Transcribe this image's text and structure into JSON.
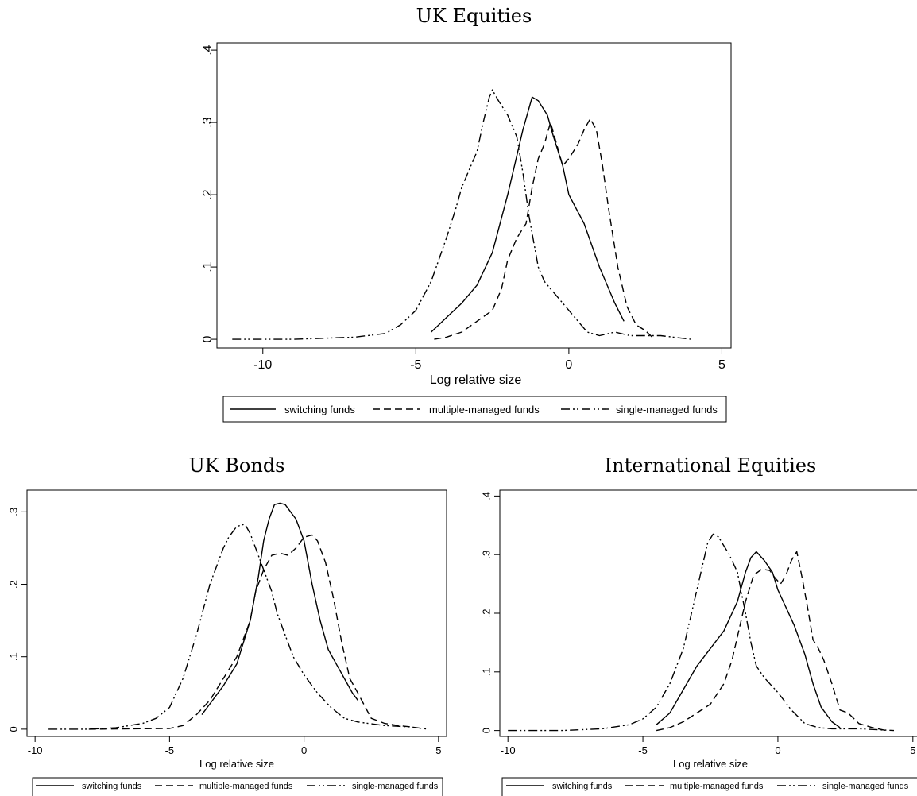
{
  "chart_data": [
    {
      "type": "line",
      "title": "UK Equities",
      "xlabel": "Log relative size",
      "ylabel": "",
      "xlim": [
        -11.5,
        5.3
      ],
      "ylim": [
        -0.012,
        0.41
      ],
      "xticks": [
        -10,
        -5,
        0,
        5
      ],
      "xtick_labels": [
        "-10",
        "-5",
        "0",
        "5"
      ],
      "yticks": [
        0,
        0.1,
        0.2,
        0.3,
        0.4
      ],
      "ytick_labels": [
        "0",
        ".1",
        ".2",
        ".3",
        ".4"
      ],
      "grid": false,
      "legend_position": "bottom",
      "series": [
        {
          "name": "switching funds",
          "style": "solid",
          "x": [
            -4.5,
            -4.0,
            -3.5,
            -3.0,
            -2.5,
            -2.0,
            -1.5,
            -1.2,
            -1.0,
            -0.7,
            -0.5,
            -0.2,
            0.0,
            0.5,
            1.0,
            1.5,
            1.8
          ],
          "y": [
            0.01,
            0.03,
            0.05,
            0.075,
            0.12,
            0.2,
            0.29,
            0.335,
            0.33,
            0.31,
            0.28,
            0.24,
            0.2,
            0.16,
            0.1,
            0.05,
            0.025
          ]
        },
        {
          "name": "multiple-managed funds",
          "style": "dashed",
          "x": [
            -4.4,
            -4.0,
            -3.5,
            -3.0,
            -2.5,
            -2.2,
            -2.0,
            -1.7,
            -1.4,
            -1.2,
            -1.0,
            -0.8,
            -0.6,
            -0.4,
            -0.2,
            0.0,
            0.3,
            0.5,
            0.7,
            0.9,
            1.1,
            1.3,
            1.6,
            1.9,
            2.2,
            2.5,
            2.8
          ],
          "y": [
            0.0,
            0.003,
            0.01,
            0.025,
            0.04,
            0.07,
            0.11,
            0.14,
            0.16,
            0.21,
            0.25,
            0.27,
            0.3,
            0.27,
            0.24,
            0.25,
            0.27,
            0.29,
            0.305,
            0.29,
            0.24,
            0.18,
            0.1,
            0.045,
            0.02,
            0.012,
            0.0
          ]
        },
        {
          "name": "single-managed funds",
          "style": "dashdot",
          "x": [
            -11.0,
            -9.0,
            -7.0,
            -6.0,
            -5.5,
            -5.0,
            -4.5,
            -4.0,
            -3.7,
            -3.5,
            -3.2,
            -3.0,
            -2.8,
            -2.6,
            -2.5,
            -2.3,
            -2.0,
            -1.7,
            -1.5,
            -1.3,
            -1.0,
            -0.8,
            -0.5,
            -0.2,
            0.0,
            0.3,
            0.6,
            1.0,
            1.5,
            2.0,
            3.0,
            4.0
          ],
          "y": [
            0.0,
            0.0,
            0.003,
            0.008,
            0.02,
            0.04,
            0.08,
            0.14,
            0.18,
            0.21,
            0.24,
            0.26,
            0.3,
            0.335,
            0.345,
            0.33,
            0.31,
            0.28,
            0.23,
            0.17,
            0.1,
            0.08,
            0.065,
            0.05,
            0.04,
            0.025,
            0.01,
            0.005,
            0.01,
            0.005,
            0.005,
            0.0
          ]
        }
      ],
      "legend": [
        "switching funds",
        "multiple-managed funds",
        "single-managed funds"
      ]
    },
    {
      "type": "line",
      "title": "UK Bonds",
      "xlabel": "Log relative size",
      "ylabel": "",
      "xlim": [
        -10.3,
        5.3
      ],
      "ylim": [
        -0.01,
        0.33
      ],
      "xticks": [
        -10,
        -5,
        0,
        5
      ],
      "xtick_labels": [
        "-10",
        "-5",
        "0",
        "5"
      ],
      "yticks": [
        0,
        0.1,
        0.2,
        0.3
      ],
      "ytick_labels": [
        "0",
        ".1",
        ".2",
        ".3"
      ],
      "grid": false,
      "legend_position": "bottom",
      "series": [
        {
          "name": "switching funds",
          "style": "solid",
          "x": [
            -3.8,
            -3.5,
            -3.0,
            -2.5,
            -2.0,
            -1.7,
            -1.5,
            -1.3,
            -1.1,
            -0.9,
            -0.7,
            -0.5,
            -0.3,
            0.0,
            0.3,
            0.6,
            0.9,
            1.2,
            1.5,
            1.8,
            2.0
          ],
          "y": [
            0.02,
            0.035,
            0.06,
            0.09,
            0.15,
            0.21,
            0.26,
            0.29,
            0.31,
            0.312,
            0.31,
            0.3,
            0.29,
            0.26,
            0.2,
            0.15,
            0.11,
            0.09,
            0.07,
            0.05,
            0.04
          ]
        },
        {
          "name": "multiple-managed funds",
          "style": "dashed",
          "x": [
            -8.0,
            -5.0,
            -4.5,
            -4.0,
            -3.5,
            -3.0,
            -2.5,
            -2.0,
            -1.8,
            -1.5,
            -1.2,
            -0.9,
            -0.6,
            -0.3,
            0.0,
            0.3,
            0.5,
            0.8,
            1.1,
            1.4,
            1.7,
            2.0,
            2.5,
            3.0,
            3.5,
            4.0
          ],
          "y": [
            0.0,
            0.001,
            0.005,
            0.02,
            0.04,
            0.07,
            0.1,
            0.15,
            0.19,
            0.22,
            0.24,
            0.243,
            0.24,
            0.25,
            0.265,
            0.268,
            0.26,
            0.23,
            0.18,
            0.12,
            0.07,
            0.05,
            0.015,
            0.008,
            0.005,
            0.003
          ]
        },
        {
          "name": "single-managed funds",
          "style": "dashdot",
          "x": [
            -9.5,
            -8.0,
            -7.0,
            -6.0,
            -5.5,
            -5.0,
            -4.5,
            -4.0,
            -3.5,
            -3.2,
            -3.0,
            -2.8,
            -2.5,
            -2.2,
            -2.0,
            -1.8,
            -1.5,
            -1.2,
            -1.0,
            -0.7,
            -0.4,
            0.0,
            0.5,
            1.0,
            1.5,
            2.0,
            3.0,
            4.0,
            4.6
          ],
          "y": [
            0.0,
            0.0,
            0.002,
            0.008,
            0.015,
            0.03,
            0.07,
            0.13,
            0.2,
            0.23,
            0.25,
            0.265,
            0.28,
            0.283,
            0.27,
            0.25,
            0.22,
            0.19,
            0.16,
            0.13,
            0.1,
            0.075,
            0.05,
            0.03,
            0.015,
            0.01,
            0.005,
            0.003,
            0.0
          ]
        }
      ],
      "legend": [
        "switching funds",
        "multiple-managed funds",
        "single-managed funds"
      ]
    },
    {
      "type": "line",
      "title": "International Equities",
      "xlabel": "Log relative size",
      "ylabel": "",
      "xlim": [
        -10.3,
        5.3
      ],
      "ylim": [
        -0.01,
        0.41
      ],
      "xticks": [
        -10,
        -5,
        0,
        5
      ],
      "xtick_labels": [
        "-10",
        "-5",
        "0",
        "5"
      ],
      "yticks": [
        0,
        0.1,
        0.2,
        0.3,
        0.4
      ],
      "ytick_labels": [
        "0",
        ".1",
        ".2",
        ".3",
        ".4"
      ],
      "grid": false,
      "legend_position": "bottom",
      "series": [
        {
          "name": "switching funds",
          "style": "solid",
          "x": [
            -4.5,
            -4.0,
            -3.5,
            -3.0,
            -2.5,
            -2.0,
            -1.5,
            -1.2,
            -1.0,
            -0.8,
            -0.5,
            -0.2,
            0.0,
            0.3,
            0.6,
            1.0,
            1.3,
            1.6,
            2.0,
            2.3
          ],
          "y": [
            0.01,
            0.03,
            0.07,
            0.11,
            0.14,
            0.17,
            0.22,
            0.27,
            0.295,
            0.305,
            0.29,
            0.27,
            0.24,
            0.21,
            0.18,
            0.13,
            0.08,
            0.04,
            0.015,
            0.005
          ]
        },
        {
          "name": "multiple-managed funds",
          "style": "dashed",
          "x": [
            -4.5,
            -4.0,
            -3.5,
            -3.0,
            -2.5,
            -2.0,
            -1.7,
            -1.5,
            -1.2,
            -0.9,
            -0.6,
            -0.3,
            -0.1,
            0.1,
            0.3,
            0.5,
            0.7,
            0.9,
            1.1,
            1.3,
            1.5,
            1.7,
            2.0,
            2.3,
            2.6,
            3.0,
            3.5,
            4.0
          ],
          "y": [
            0.0,
            0.005,
            0.015,
            0.03,
            0.045,
            0.08,
            0.12,
            0.16,
            0.22,
            0.265,
            0.275,
            0.273,
            0.26,
            0.25,
            0.265,
            0.29,
            0.305,
            0.26,
            0.21,
            0.155,
            0.14,
            0.12,
            0.08,
            0.035,
            0.03,
            0.012,
            0.005,
            0.0
          ]
        },
        {
          "name": "single-managed funds",
          "style": "dashdot",
          "x": [
            -10.0,
            -8.0,
            -6.5,
            -5.5,
            -5.0,
            -4.5,
            -4.0,
            -3.5,
            -3.2,
            -3.0,
            -2.8,
            -2.6,
            -2.4,
            -2.2,
            -2.0,
            -1.8,
            -1.5,
            -1.2,
            -1.0,
            -0.8,
            -0.5,
            -0.2,
            0.0,
            0.5,
            1.0,
            1.5,
            2.0,
            3.0,
            4.3
          ],
          "y": [
            0.0,
            0.0,
            0.003,
            0.01,
            0.02,
            0.04,
            0.08,
            0.14,
            0.2,
            0.24,
            0.28,
            0.32,
            0.335,
            0.33,
            0.315,
            0.3,
            0.27,
            0.2,
            0.15,
            0.11,
            0.09,
            0.075,
            0.065,
            0.035,
            0.012,
            0.005,
            0.003,
            0.003,
            0.0
          ]
        }
      ],
      "legend": [
        "switching funds",
        "multiple-managed funds",
        "single-managed funds"
      ]
    }
  ]
}
